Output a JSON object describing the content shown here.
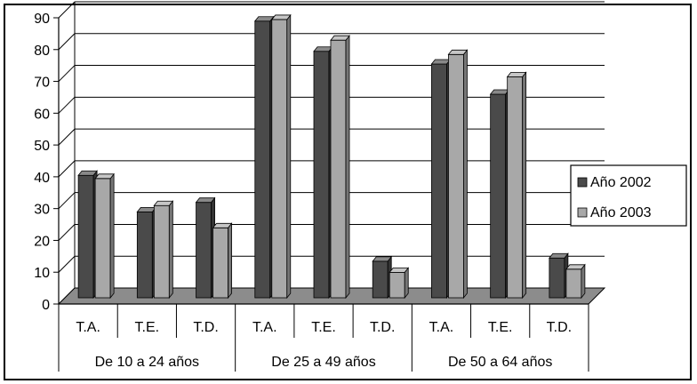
{
  "chart_data": {
    "type": "bar",
    "title": "",
    "xlabel": "",
    "ylabel": "",
    "ylim": [
      0,
      90
    ],
    "yticks": [
      "0",
      "10",
      "20",
      "30",
      "40",
      "50",
      "60",
      "70",
      "80",
      "90"
    ],
    "grid": true,
    "legend_position": "right",
    "groups": [
      "De 10 a 24 años",
      "De 25 a 49 años",
      "De 50 a 64 años"
    ],
    "categories": [
      "T.A.",
      "T.E.",
      "T.D.",
      "T.A.",
      "T.E.",
      "T.D.",
      "T.A.",
      "T.E.",
      "T.D."
    ],
    "series": [
      {
        "name": "Año 2002",
        "color": "#4a4a4a",
        "values": [
          38.5,
          27,
          30,
          87,
          77.5,
          11.5,
          73.5,
          64,
          12.5
        ]
      },
      {
        "name": "Año 2003",
        "color": "#a8a8a8",
        "values": [
          37.5,
          29,
          22,
          87.5,
          81,
          8,
          76.5,
          69.5,
          9
        ]
      }
    ]
  }
}
